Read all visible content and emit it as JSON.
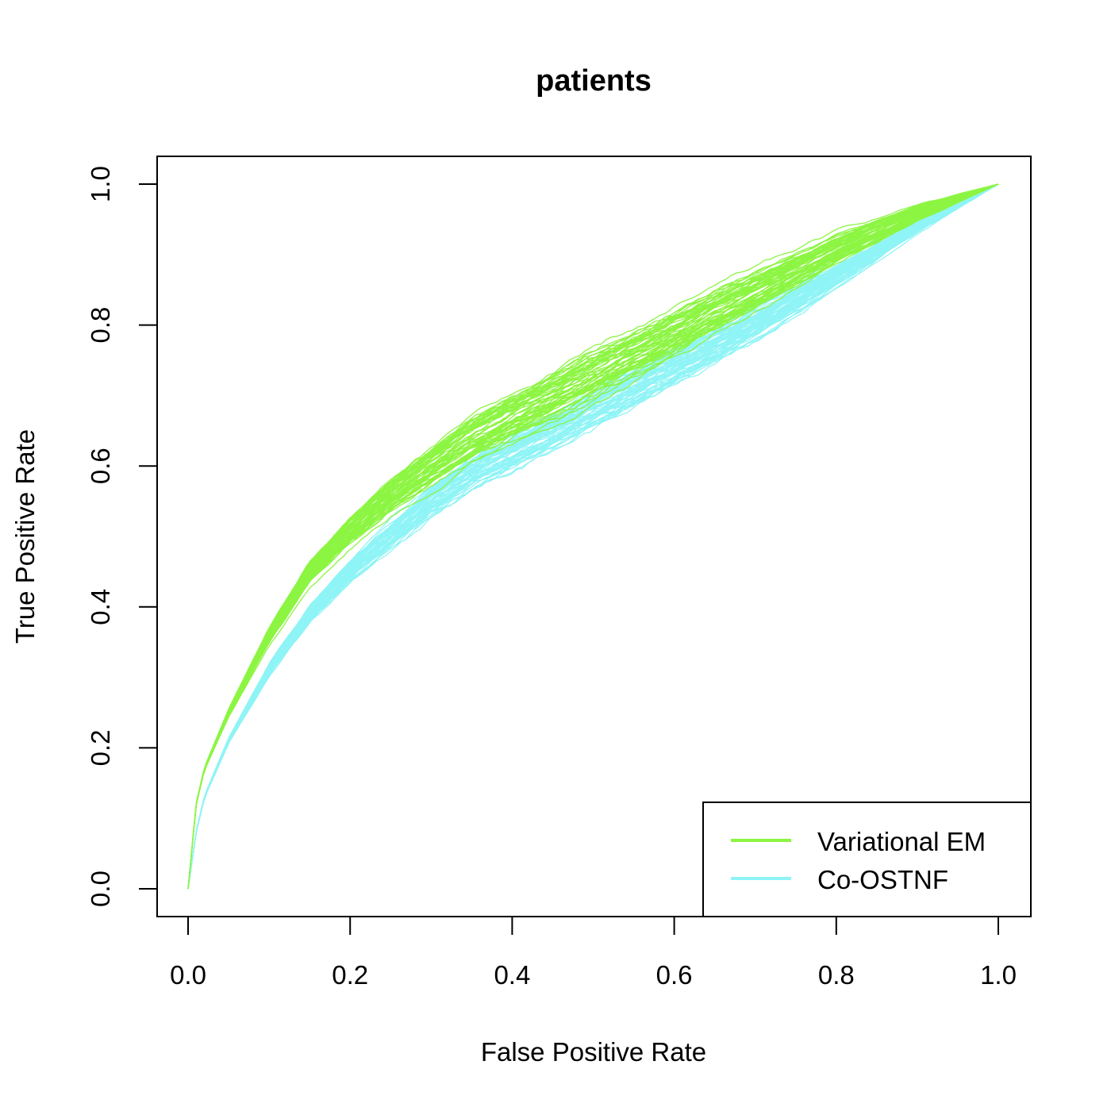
{
  "chart_data": {
    "type": "line",
    "title": "patients",
    "xlabel": "False Positive Rate",
    "ylabel": "True Positive Rate",
    "xlim": [
      0.0,
      1.0
    ],
    "ylim": [
      0.0,
      1.0
    ],
    "x_ticks": [
      "0.0",
      "0.2",
      "0.4",
      "0.6",
      "0.8",
      "1.0"
    ],
    "y_ticks": [
      "0.0",
      "0.2",
      "0.4",
      "0.6",
      "0.8",
      "1.0"
    ],
    "legend_position": "bottom-right",
    "grid": false,
    "series": [
      {
        "name": "Variational EM",
        "color": "#8cf542",
        "x": [
          0.0,
          0.01,
          0.02,
          0.05,
          0.1,
          0.15,
          0.2,
          0.25,
          0.3,
          0.35,
          0.4,
          0.5,
          0.6,
          0.7,
          0.8,
          0.9,
          1.0
        ],
        "y": [
          0.0,
          0.12,
          0.17,
          0.25,
          0.36,
          0.45,
          0.51,
          0.56,
          0.6,
          0.64,
          0.67,
          0.73,
          0.79,
          0.85,
          0.91,
          0.96,
          1.0
        ],
        "replicates": 60,
        "spread": 0.03
      },
      {
        "name": "Co-OSTNF",
        "color": "#8ff4f6",
        "x": [
          0.0,
          0.01,
          0.02,
          0.05,
          0.1,
          0.15,
          0.2,
          0.25,
          0.3,
          0.35,
          0.4,
          0.5,
          0.6,
          0.7,
          0.8,
          0.9,
          1.0
        ],
        "y": [
          0.0,
          0.08,
          0.13,
          0.21,
          0.31,
          0.39,
          0.45,
          0.5,
          0.55,
          0.59,
          0.62,
          0.68,
          0.74,
          0.8,
          0.87,
          0.94,
          1.0
        ],
        "replicates": 60,
        "spread": 0.025
      }
    ]
  }
}
